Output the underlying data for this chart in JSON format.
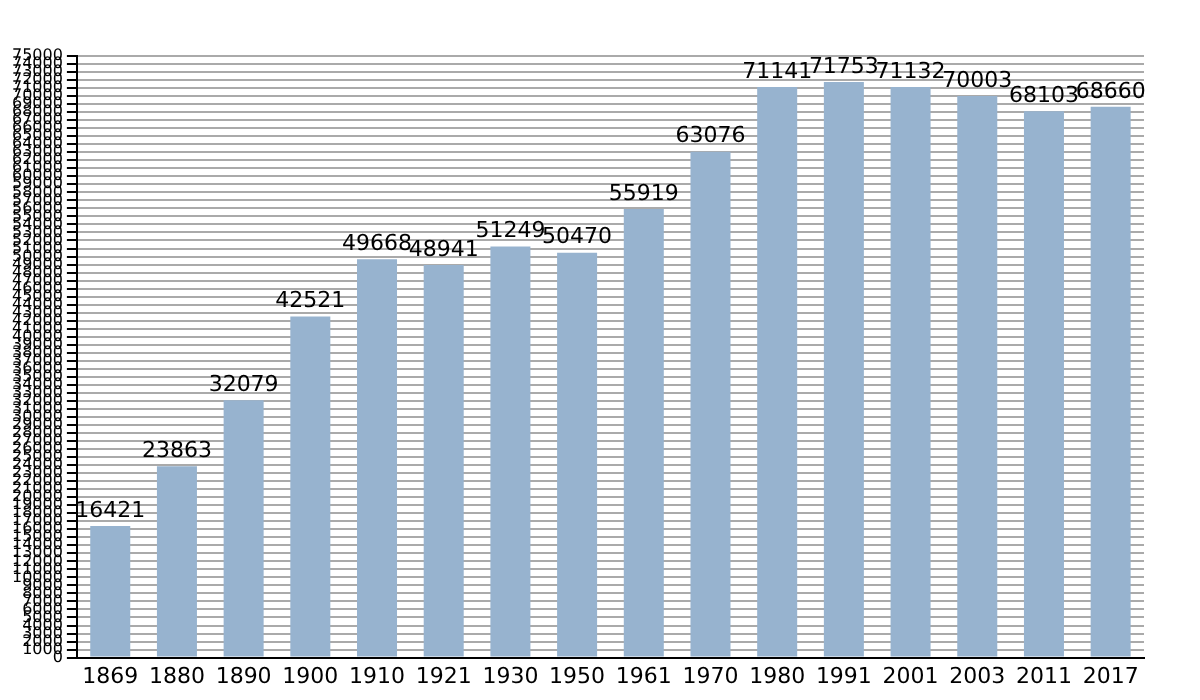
{
  "chart_data": {
    "type": "bar",
    "categories": [
      "1869",
      "1880",
      "1890",
      "1900",
      "1910",
      "1921",
      "1930",
      "1950",
      "1961",
      "1970",
      "1980",
      "1991",
      "2001",
      "2003",
      "2011",
      "2017"
    ],
    "values": [
      16421,
      23863,
      32079,
      42521,
      49668,
      48941,
      51249,
      50470,
      55919,
      63076,
      71141,
      71753,
      71132,
      70003,
      68103,
      68660
    ],
    "color": "#97b3cf",
    "ylim": [
      0,
      75000
    ],
    "yticks": [
      0,
      1000,
      2000,
      3000,
      4000,
      5000,
      6000,
      7000,
      8000,
      9000,
      10000,
      11000,
      12000,
      13000,
      14000,
      15000,
      16000,
      17000,
      18000,
      19000,
      20000,
      21000,
      22000,
      23000,
      24000,
      25000,
      26000,
      27000,
      28000,
      29000,
      30000,
      31000,
      32000,
      33000,
      34000,
      35000,
      36000,
      37000,
      38000,
      39000,
      40000,
      41000,
      42000,
      43000,
      44000,
      45000,
      46000,
      47000,
      48000,
      49000,
      50000,
      51000,
      52000,
      53000,
      54000,
      55000,
      56000,
      57000,
      58000,
      59000,
      60000,
      61000,
      62000,
      63000,
      64000,
      65000,
      66000,
      67000,
      68000,
      69000,
      70000,
      71000,
      72000,
      73000,
      74000,
      75000
    ],
    "grid": "y",
    "data_labels": true
  }
}
